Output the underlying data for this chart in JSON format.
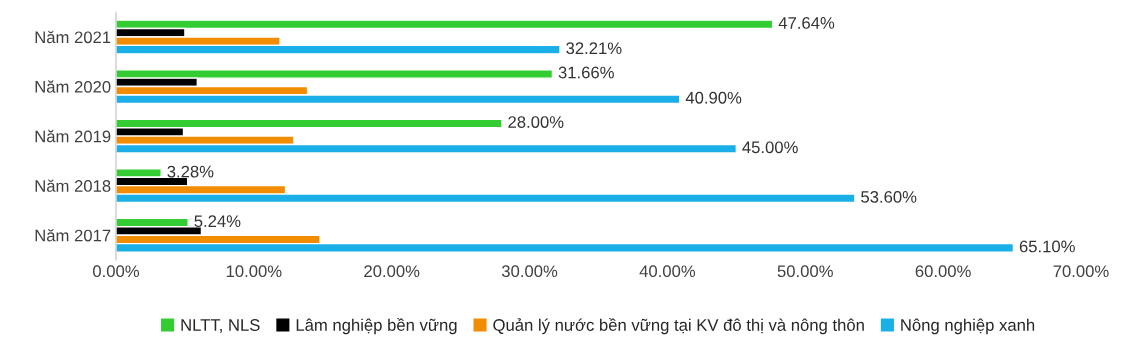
{
  "chart_data": {
    "type": "bar",
    "orientation": "horizontal",
    "categories": [
      "Năm 2021",
      "Năm 2020",
      "Năm 2019",
      "Năm 2018",
      "Năm 2017"
    ],
    "series": [
      {
        "name": "NLTT, NLS",
        "color": "#33cc33",
        "values": [
          47.64,
          31.66,
          28.0,
          3.28,
          5.24
        ],
        "value_labels": [
          "47.64%",
          "31.66%",
          "28.00%",
          "3.28%",
          "5.24%"
        ]
      },
      {
        "name": "Lâm nghiệp bền vững",
        "color": "#000000",
        "values": [
          5.0,
          5.9,
          4.9,
          5.2,
          6.2
        ]
      },
      {
        "name": "Quản lý nước bền vững tại KV đô thị và nông thôn",
        "color": "#f28c00",
        "values": [
          11.9,
          13.9,
          12.9,
          12.3,
          14.8
        ]
      },
      {
        "name": "Nông nghiệp xanh",
        "color": "#1aafe6",
        "values": [
          32.21,
          40.9,
          45.0,
          53.6,
          65.1
        ],
        "value_labels": [
          "32.21%",
          "40.90%",
          "45.00%",
          "53.60%",
          "65.10%"
        ]
      }
    ],
    "xlim": [
      0,
      70
    ],
    "xticks": [
      {
        "value": 0,
        "label": "0.00%"
      },
      {
        "value": 10,
        "label": "10.00%"
      },
      {
        "value": 20,
        "label": "20.00%"
      },
      {
        "value": 30,
        "label": "30.00%"
      },
      {
        "value": 40,
        "label": "40.00%"
      },
      {
        "value": 50,
        "label": "50.00%"
      },
      {
        "value": 60,
        "label": "60.00%"
      },
      {
        "value": 70,
        "label": "70.00%"
      }
    ],
    "grid": false,
    "legend": "bottom"
  }
}
